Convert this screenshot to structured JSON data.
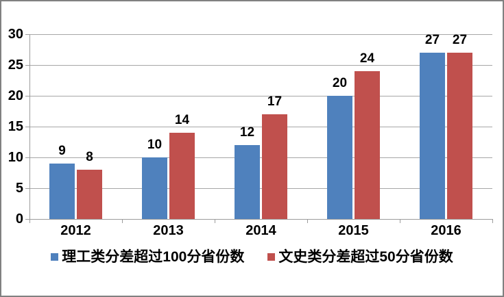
{
  "window": {
    "background": "#ffffff",
    "border_color": "#808080"
  },
  "colors": {
    "series_blue": "#4F81BD",
    "series_red": "#C0504D",
    "gridline": "#A6A6A6",
    "axis": "#9B9B9B",
    "label_text": "#000000"
  },
  "chart_data": {
    "type": "bar",
    "title": "",
    "xlabel": "",
    "ylabel": "",
    "categories": [
      "2012",
      "2013",
      "2014",
      "2015",
      "2016"
    ],
    "series": [
      {
        "name": "理工类分差超过100分省份数",
        "color": "#4F81BD",
        "values": [
          9,
          10,
          12,
          20,
          27
        ]
      },
      {
        "name": "文史类分差超过50分省份数",
        "color": "#C0504D",
        "values": [
          8,
          14,
          17,
          24,
          27
        ]
      }
    ],
    "ylim": [
      0,
      30
    ],
    "yticks": [
      0,
      5,
      10,
      15,
      20,
      25,
      30
    ],
    "ytick_labels": [
      "0",
      "5",
      "10",
      "15",
      "20",
      "25",
      "30"
    ],
    "grid": true,
    "data_labels": true,
    "legend_position": "bottom"
  }
}
